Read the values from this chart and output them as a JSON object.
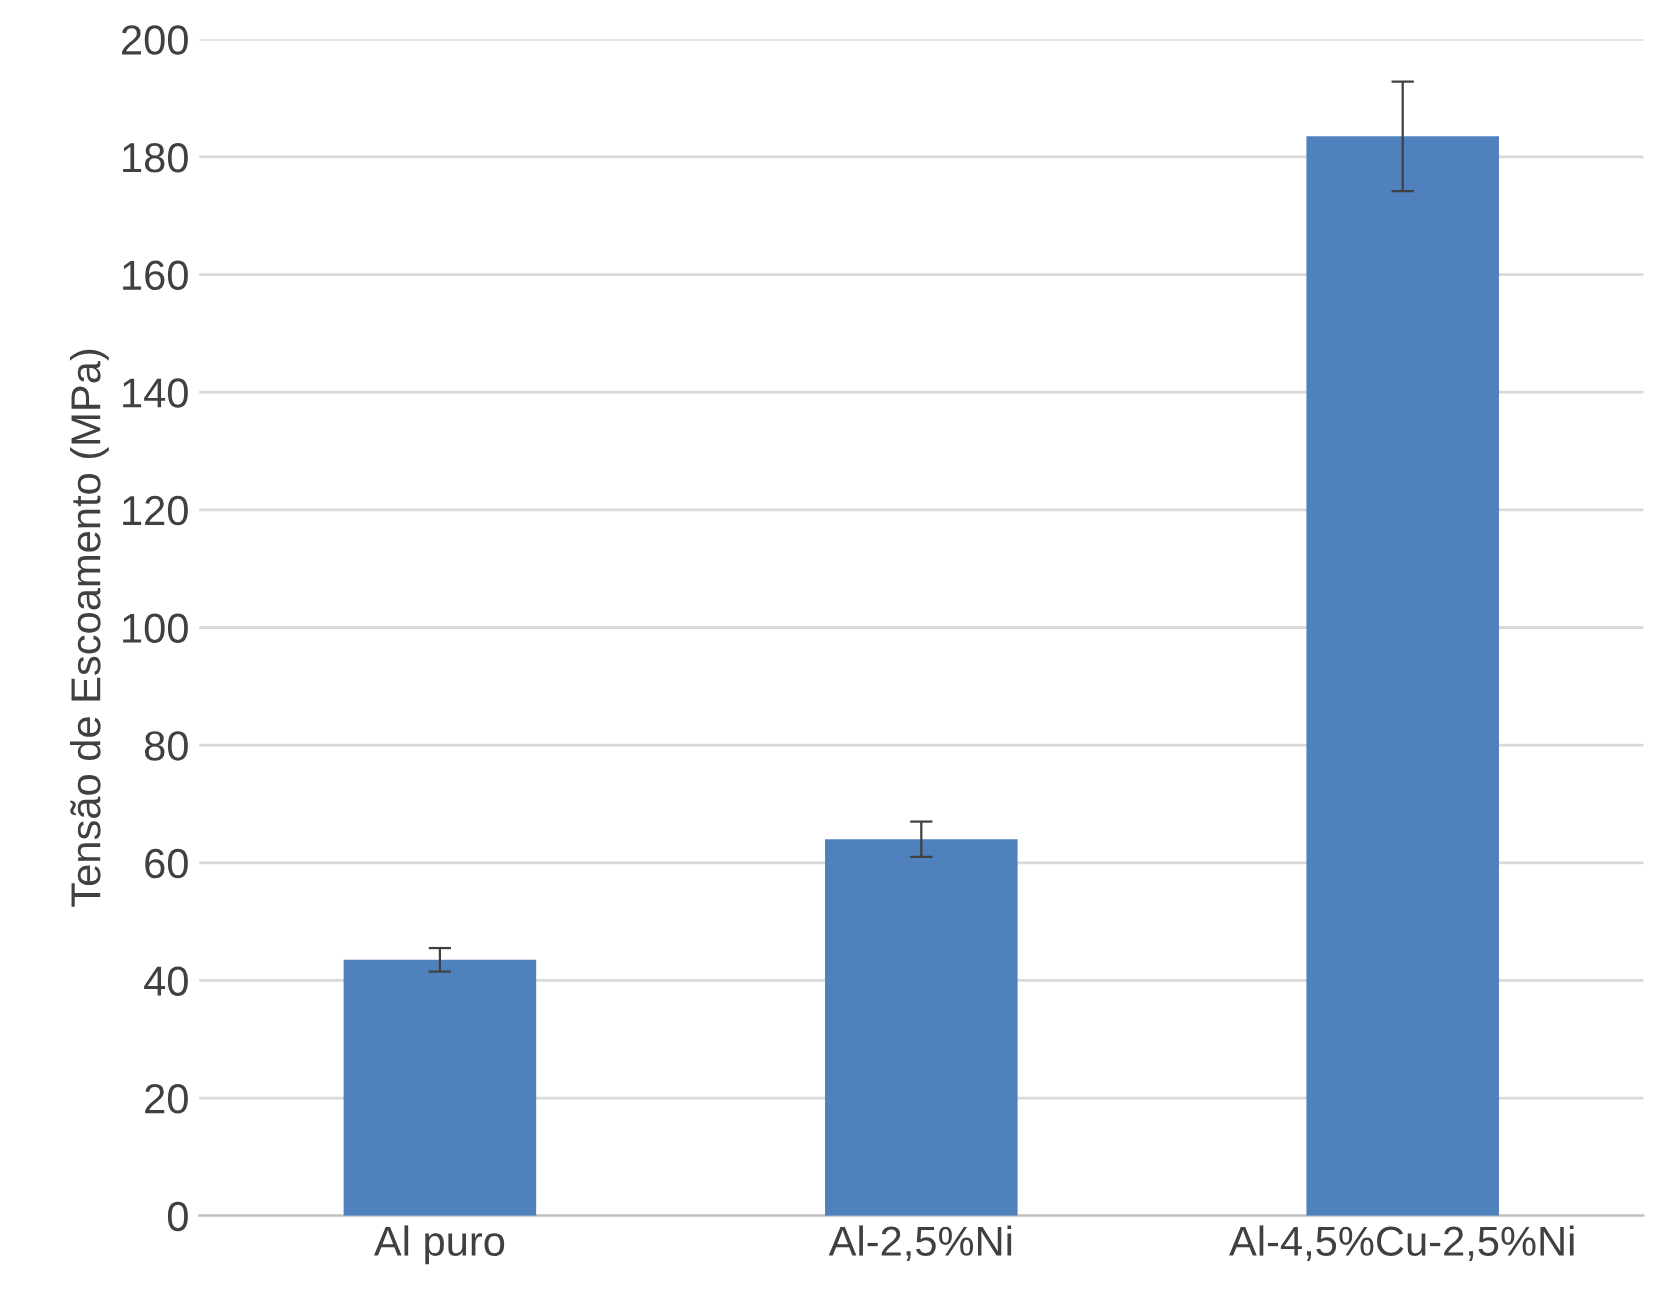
{
  "chart_data": {
    "type": "bar",
    "ylabel": "Tensão de Escoamento (MPa)",
    "categories": [
      "Al puro",
      "Al-2,5%Ni",
      "Al-4,5%Cu-2,5%Ni"
    ],
    "values": [
      43.5,
      64,
      183.5
    ],
    "errors": [
      2,
      3,
      9.3
    ],
    "color": "#4f81bd",
    "ylim": [
      0,
      200
    ],
    "yticks": [
      0,
      20,
      40,
      60,
      80,
      100,
      120,
      140,
      160,
      180,
      200
    ],
    "grid": "y"
  }
}
